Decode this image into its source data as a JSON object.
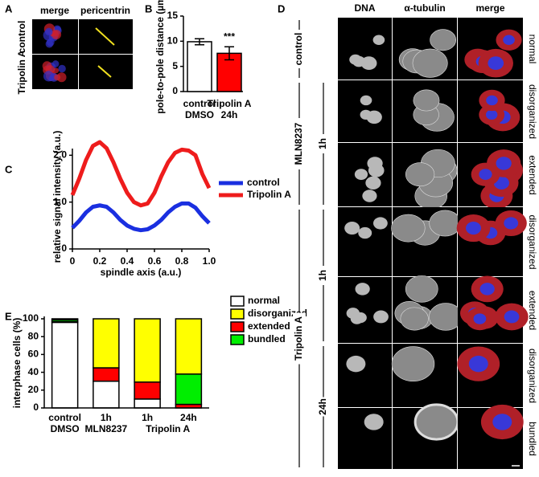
{
  "figure": {
    "panel_labels": [
      "A",
      "B",
      "C",
      "D",
      "E"
    ],
    "panel_a": {
      "columns": [
        "merge",
        "pericentrin"
      ],
      "rows": [
        "control",
        "Tripolin A"
      ]
    },
    "panel_d": {
      "columns": [
        "DNA",
        "α-tubulin",
        "merge"
      ],
      "row_labels": [
        "normal",
        "disorganized",
        "extended",
        "disorganized",
        "extended",
        "disorganized",
        "bundled"
      ],
      "groups": [
        "control",
        "MLN8237",
        "Tripolin A"
      ],
      "times": [
        "1h",
        "1h",
        "24h"
      ]
    }
  },
  "chart_data": [
    {
      "type": "bar",
      "ylabel": "pole-to-pole distance (µm)",
      "categories": [
        [
          "control",
          "DMSO"
        ],
        [
          "Tripolin A",
          "24h"
        ]
      ],
      "values": [
        9.9,
        7.6
      ],
      "errors": [
        0.6,
        1.3
      ],
      "colors": [
        "#ffffff",
        "#ff0000"
      ],
      "ylim": [
        0,
        15
      ],
      "yticks": [
        0,
        5,
        10,
        15
      ],
      "annotations": [
        "***"
      ]
    },
    {
      "type": "line",
      "xlabel": "spindle axis (a.u.)",
      "ylabel": "relative signal intensity (a.u.)",
      "x": [
        0,
        0.05,
        0.1,
        0.15,
        0.2,
        0.25,
        0.3,
        0.35,
        0.4,
        0.45,
        0.5,
        0.55,
        0.6,
        0.65,
        0.7,
        0.75,
        0.8,
        0.85,
        0.9,
        0.95,
        1
      ],
      "series": [
        {
          "name": "control",
          "color": "#1a2fe0",
          "values": [
            0.45,
            0.6,
            0.78,
            0.9,
            0.93,
            0.9,
            0.78,
            0.62,
            0.5,
            0.43,
            0.4,
            0.42,
            0.5,
            0.62,
            0.78,
            0.9,
            0.97,
            0.97,
            0.88,
            0.7,
            0.55
          ]
        },
        {
          "name": "Tripolin A",
          "color": "#ee1c1c",
          "values": [
            1.15,
            1.5,
            1.9,
            2.2,
            2.28,
            2.15,
            1.85,
            1.5,
            1.2,
            1.0,
            0.93,
            0.97,
            1.2,
            1.55,
            1.85,
            2.05,
            2.12,
            2.1,
            2.0,
            1.6,
            1.3
          ]
        }
      ],
      "xlim": [
        0,
        1
      ],
      "ylim": [
        0,
        2.4
      ],
      "xticks": [
        0,
        0.2,
        0.4,
        0.6,
        0.8,
        {
          "value": 1,
          "label": "1.0"
        }
      ],
      "yticks": [
        0,
        {
          "value": 1,
          "label": "1.0"
        },
        {
          "value": 2,
          "label": "2.0"
        }
      ]
    },
    {
      "type": "stacked_bar",
      "ylabel": "interphase cells (%)",
      "categories": [
        "control",
        "1h",
        "1h",
        "24h"
      ],
      "group_labels": [
        "DMSO",
        "MLN8237",
        "Tripolin A"
      ],
      "series": [
        {
          "name": "normal",
          "color": "#ffffff",
          "values": [
            96,
            30,
            10,
            0
          ]
        },
        {
          "name": "disorganized",
          "color": "#ffff00",
          "values": [
            1,
            55,
            71,
            62
          ]
        },
        {
          "name": "extended",
          "color": "#ff0000",
          "values": [
            1,
            15,
            19,
            4
          ]
        },
        {
          "name": "bundled",
          "color": "#00ee00",
          "values": [
            2,
            0,
            0,
            34
          ]
        }
      ],
      "ylim": [
        0,
        100
      ],
      "yticks": [
        0,
        20,
        40,
        60,
        80,
        100
      ]
    }
  ]
}
